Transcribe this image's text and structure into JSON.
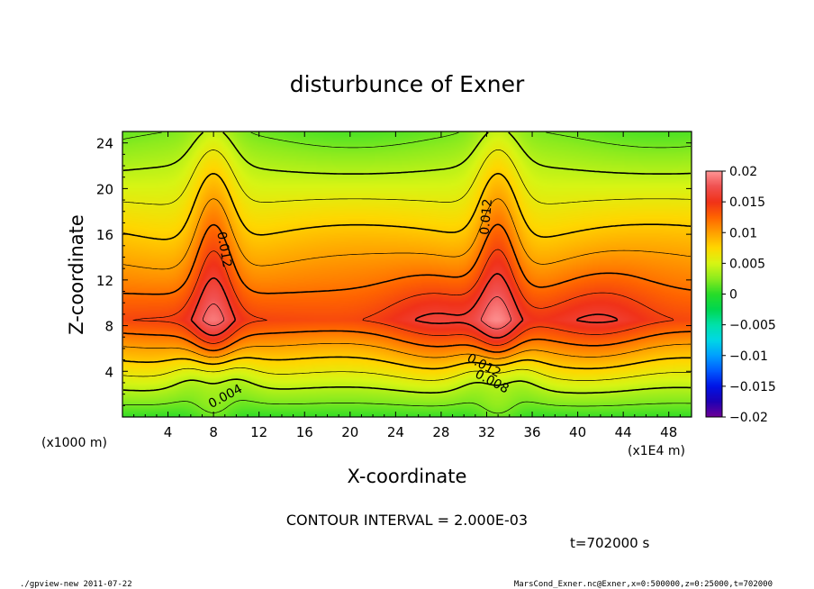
{
  "chart_data": {
    "type": "heatmap",
    "title": "disturbunce of Exner",
    "xlabel": "X-coordinate",
    "ylabel": "Z-coordinate",
    "x_unit_label": "(x1E4 m)",
    "y_unit_label": "(x1000 m)",
    "xlim": [
      0,
      50
    ],
    "ylim": [
      0,
      25
    ],
    "x_ticks": [
      4,
      8,
      12,
      16,
      20,
      24,
      28,
      32,
      36,
      40,
      44,
      48
    ],
    "y_ticks": [
      4,
      8,
      12,
      16,
      20,
      24
    ],
    "colorbar": {
      "range": [
        -0.02,
        0.02
      ],
      "tick_values": [
        0.02,
        0.015,
        0.01,
        0.005,
        0,
        -0.005,
        -0.01,
        -0.015,
        -0.02
      ],
      "tick_labels": [
        "0.02",
        "0.015",
        "0.01",
        "0.005",
        "0",
        "−0.005",
        "−0.01",
        "−0.015",
        "−0.02"
      ]
    },
    "contour_labels": [
      {
        "text": "0.012",
        "x": 8.6,
        "z": 14.6,
        "angle": 80
      },
      {
        "text": "0.012",
        "x": 32.3,
        "z": 17.5,
        "angle": -85
      },
      {
        "text": "0.012",
        "x": 31.6,
        "z": 4.2,
        "angle": 28
      },
      {
        "text": "0.008",
        "x": 32.3,
        "z": 2.8,
        "angle": 28
      },
      {
        "text": "0.004",
        "x": 9.2,
        "z": 1.5,
        "angle": -28
      }
    ],
    "field_peaks": [
      {
        "x": 8,
        "z": 8.5,
        "value": 0.0195
      },
      {
        "x": 33,
        "z": 8.5,
        "value": 0.0195
      },
      {
        "x": 27.5,
        "z": 8.5,
        "value": 0.0165
      },
      {
        "x": 42,
        "z": 8.5,
        "value": 0.0165
      }
    ],
    "contour_interval": "CONTOUR INTERVAL = 2.000E-03",
    "time_label": "t=702000 s",
    "grid": false
  },
  "footer": {
    "left": "./gpview-new   2011-07-22",
    "right": "MarsCond_Exner.nc@Exner,x=0:500000,z=0:25000,t=702000"
  }
}
